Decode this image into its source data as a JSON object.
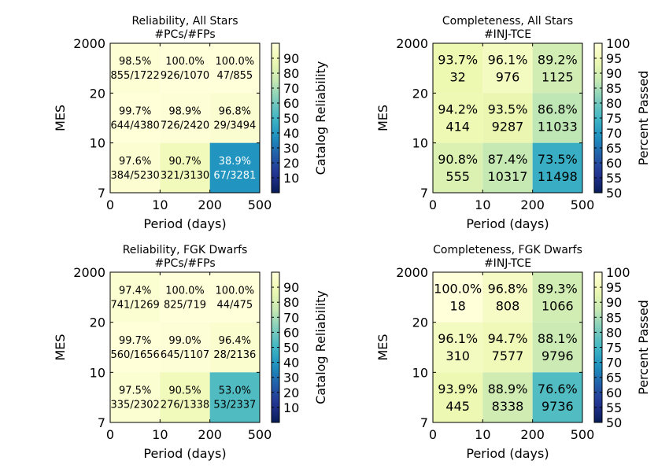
{
  "chart_data": [
    {
      "type": "heatmap",
      "title_lines": [
        "Reliability, All Stars",
        "#PCs/#FPs"
      ],
      "xlabel": "Period (days)",
      "ylabel": "MES",
      "xtick_labels": [
        "0",
        "10",
        "200",
        "500"
      ],
      "ytick_labels": [
        "7",
        "10",
        "20",
        "2000"
      ],
      "colorbar_label": "Catalog Reliability",
      "colorbar_range": [
        0,
        100
      ],
      "colorbar_ticks": [
        10,
        20,
        30,
        40,
        50,
        60,
        70,
        80,
        90
      ],
      "rows_top_to_bottom": [
        [
          {
            "value": 98.5,
            "pct": "98.5%",
            "count": "855/1722"
          },
          {
            "value": 100.0,
            "pct": "100.0%",
            "count": "926/1070"
          },
          {
            "value": 100.0,
            "pct": "100.0%",
            "count": "47/855"
          }
        ],
        [
          {
            "value": 99.7,
            "pct": "99.7%",
            "count": "644/4380"
          },
          {
            "value": 98.9,
            "pct": "98.9%",
            "count": "726/2420"
          },
          {
            "value": 96.8,
            "pct": "96.8%",
            "count": "29/3494"
          }
        ],
        [
          {
            "value": 97.6,
            "pct": "97.6%",
            "count": "384/5230"
          },
          {
            "value": 90.7,
            "pct": "90.7%",
            "count": "321/3130"
          },
          {
            "value": 38.9,
            "pct": "38.9%",
            "count": "67/3281"
          }
        ]
      ]
    },
    {
      "type": "heatmap",
      "title_lines": [
        "Completeness, All Stars",
        "#INJ-TCE"
      ],
      "xlabel": "Period (days)",
      "ylabel": "MES",
      "xtick_labels": [
        "0",
        "10",
        "200",
        "500"
      ],
      "ytick_labels": [
        "7",
        "10",
        "20",
        "2000"
      ],
      "colorbar_label": "Percent Passed",
      "colorbar_range": [
        50,
        100
      ],
      "colorbar_ticks": [
        50,
        55,
        60,
        65,
        70,
        75,
        80,
        85,
        90,
        95,
        100
      ],
      "rows_top_to_bottom": [
        [
          {
            "value": 93.7,
            "pct": "93.7%",
            "count": "32"
          },
          {
            "value": 96.1,
            "pct": "96.1%",
            "count": "976"
          },
          {
            "value": 89.2,
            "pct": "89.2%",
            "count": "1125"
          }
        ],
        [
          {
            "value": 94.2,
            "pct": "94.2%",
            "count": "414"
          },
          {
            "value": 93.5,
            "pct": "93.5%",
            "count": "9287"
          },
          {
            "value": 86.8,
            "pct": "86.8%",
            "count": "11033"
          }
        ],
        [
          {
            "value": 90.8,
            "pct": "90.8%",
            "count": "555"
          },
          {
            "value": 87.4,
            "pct": "87.4%",
            "count": "10317"
          },
          {
            "value": 73.5,
            "pct": "73.5%",
            "count": "11498"
          }
        ]
      ]
    },
    {
      "type": "heatmap",
      "title_lines": [
        "Reliability, FGK Dwarfs",
        "#PCs/#FPs"
      ],
      "xlabel": "Period (days)",
      "ylabel": "MES",
      "xtick_labels": [
        "0",
        "10",
        "200",
        "500"
      ],
      "ytick_labels": [
        "7",
        "10",
        "20",
        "2000"
      ],
      "colorbar_label": "Catalog Reliability",
      "colorbar_range": [
        0,
        100
      ],
      "colorbar_ticks": [
        10,
        20,
        30,
        40,
        50,
        60,
        70,
        80,
        90
      ],
      "rows_top_to_bottom": [
        [
          {
            "value": 97.4,
            "pct": "97.4%",
            "count": "741/1269"
          },
          {
            "value": 100.0,
            "pct": "100.0%",
            "count": "825/719"
          },
          {
            "value": 100.0,
            "pct": "100.0%",
            "count": "44/475"
          }
        ],
        [
          {
            "value": 99.7,
            "pct": "99.7%",
            "count": "560/1656"
          },
          {
            "value": 99.0,
            "pct": "99.0%",
            "count": "645/1107"
          },
          {
            "value": 96.4,
            "pct": "96.4%",
            "count": "28/2136"
          }
        ],
        [
          {
            "value": 97.5,
            "pct": "97.5%",
            "count": "335/2302"
          },
          {
            "value": 90.5,
            "pct": "90.5%",
            "count": "276/1338"
          },
          {
            "value": 53.0,
            "pct": "53.0%",
            "count": "53/2337"
          }
        ]
      ]
    },
    {
      "type": "heatmap",
      "title_lines": [
        "Completeness, FGK Dwarfs",
        "#INJ-TCE"
      ],
      "xlabel": "Period (days)",
      "ylabel": "MES",
      "xtick_labels": [
        "0",
        "10",
        "200",
        "500"
      ],
      "ytick_labels": [
        "7",
        "10",
        "20",
        "2000"
      ],
      "colorbar_label": "Percent Passed",
      "colorbar_range": [
        50,
        100
      ],
      "colorbar_ticks": [
        50,
        55,
        60,
        65,
        70,
        75,
        80,
        85,
        90,
        95,
        100
      ],
      "rows_top_to_bottom": [
        [
          {
            "value": 100.0,
            "pct": "100.0%",
            "count": "18"
          },
          {
            "value": 96.8,
            "pct": "96.8%",
            "count": "808"
          },
          {
            "value": 89.3,
            "pct": "89.3%",
            "count": "1066"
          }
        ],
        [
          {
            "value": 96.1,
            "pct": "96.1%",
            "count": "310"
          },
          {
            "value": 94.7,
            "pct": "94.7%",
            "count": "7577"
          },
          {
            "value": 88.1,
            "pct": "88.1%",
            "count": "9796"
          }
        ],
        [
          {
            "value": 93.9,
            "pct": "93.9%",
            "count": "445"
          },
          {
            "value": 88.9,
            "pct": "88.9%",
            "count": "8338"
          },
          {
            "value": 76.6,
            "pct": "76.6%",
            "count": "9736"
          }
        ]
      ]
    }
  ]
}
